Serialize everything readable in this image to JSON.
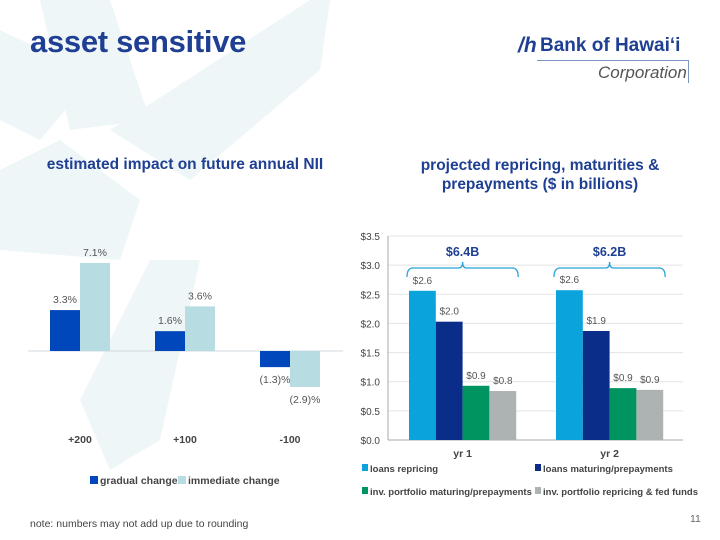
{
  "header": {
    "title": "asset sensitive",
    "logo": {
      "name": "Bank of Hawaiʻi",
      "sub": "Corporation",
      "mark": "ꟾh"
    }
  },
  "footer": {
    "note": "note: numbers may not add up due to rounding",
    "page": "11"
  },
  "colors": {
    "title": "#1f3f93",
    "gradual": "#0047bb",
    "immediate": "#b7dde3",
    "loans_repricing": "#0aa3dc",
    "loans_maturing": "#0b2d8a",
    "inv_maturing": "#009461",
    "inv_repricing": "#adb2b3",
    "brace": "#29a2d8"
  },
  "chart_data": [
    {
      "type": "bar",
      "title": "estimated impact on future annual NII",
      "categories": [
        "+200",
        "+100",
        "-100"
      ],
      "series": [
        {
          "name": "gradual change",
          "values": [
            3.3,
            1.6,
            -1.3
          ],
          "labels": [
            "3.3%",
            "1.6%",
            "(1.3)%"
          ]
        },
        {
          "name": "immediate change",
          "values": [
            7.1,
            3.6,
            -2.9
          ],
          "labels": [
            "7.1%",
            "3.6%",
            "(2.9)%"
          ]
        }
      ],
      "legend": "bottom",
      "grid": false
    },
    {
      "type": "bar",
      "title": "projected repricing, maturities & prepayments ($ in billions)",
      "categories": [
        "yr 1",
        "yr 2"
      ],
      "ylim": [
        0,
        3.5
      ],
      "yticks": [
        "$0.0",
        "$0.5",
        "$1.0",
        "$1.5",
        "$2.0",
        "$2.5",
        "$3.0",
        "$3.5"
      ],
      "series": [
        {
          "name": "loans repricing",
          "values": [
            2.56,
            2.57
          ],
          "labels": [
            "$2.6",
            "$2.6"
          ]
        },
        {
          "name": "loans maturing/prepayments",
          "values": [
            2.03,
            1.87
          ],
          "labels": [
            "$2.0",
            "$1.9"
          ]
        },
        {
          "name": "inv. portfolio maturing/prepayments",
          "values": [
            0.93,
            0.89
          ],
          "labels": [
            "$0.9",
            "$0.9"
          ]
        },
        {
          "name": "inv. portfolio repricing & fed funds",
          "values": [
            0.84,
            0.86
          ],
          "labels": [
            "$0.8",
            "$0.9"
          ]
        }
      ],
      "totals": [
        "$6.4B",
        "$6.2B"
      ],
      "legend": "bottom",
      "grid": true
    }
  ]
}
